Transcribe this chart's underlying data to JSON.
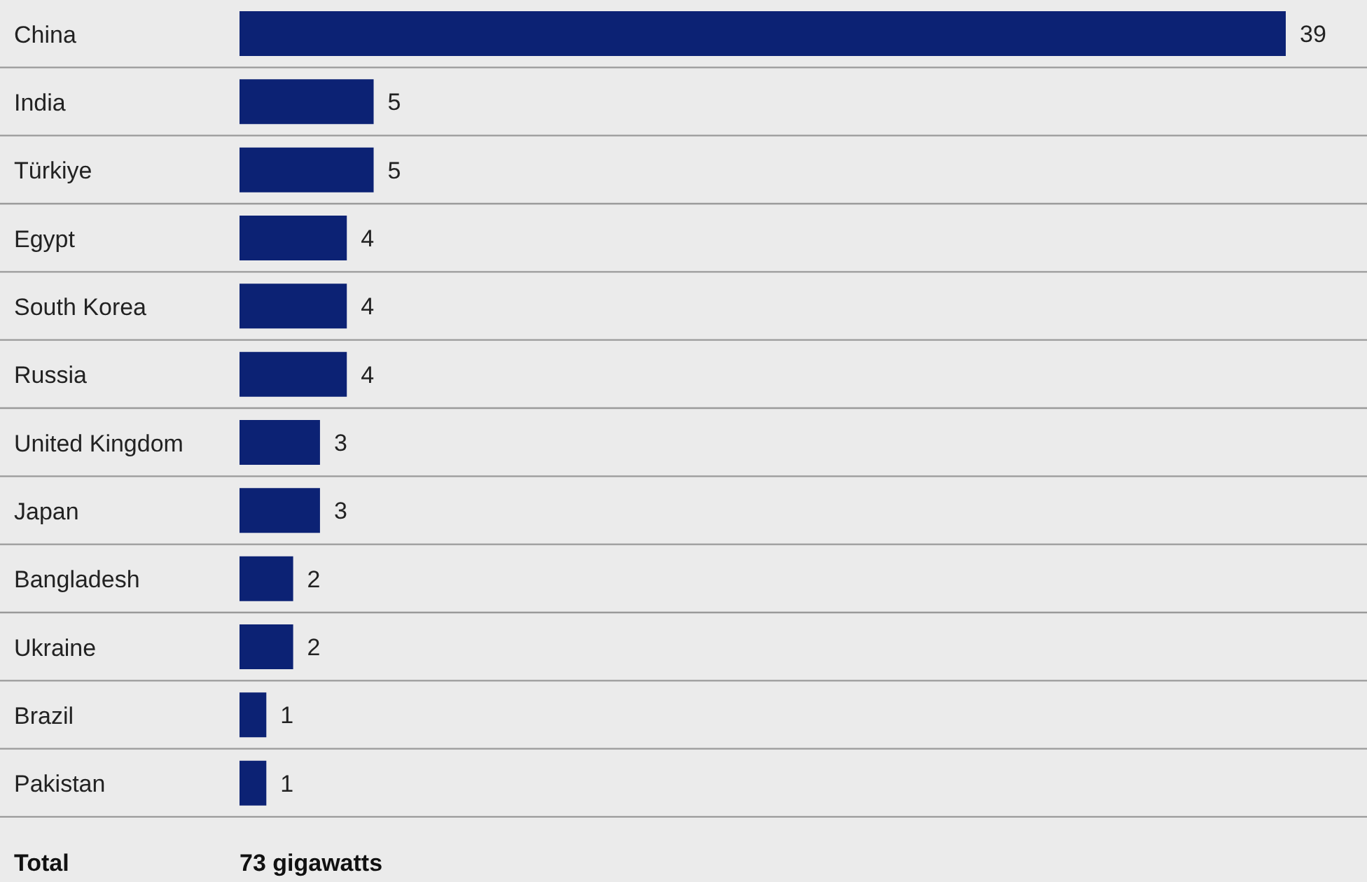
{
  "chart_data": {
    "type": "bar",
    "orientation": "horizontal",
    "categories": [
      "China",
      "India",
      "Türkiye",
      "Egypt",
      "South Korea",
      "Russia",
      "United Kingdom",
      "Japan",
      "Bangladesh",
      "Ukraine",
      "Brazil",
      "Pakistan"
    ],
    "values": [
      39,
      5,
      5,
      4,
      4,
      4,
      3,
      3,
      2,
      2,
      1,
      1
    ],
    "color": "#0c2274",
    "data_labels": true,
    "grid": "y",
    "annotations": [
      "Total",
      "73 gigawatts"
    ]
  }
}
